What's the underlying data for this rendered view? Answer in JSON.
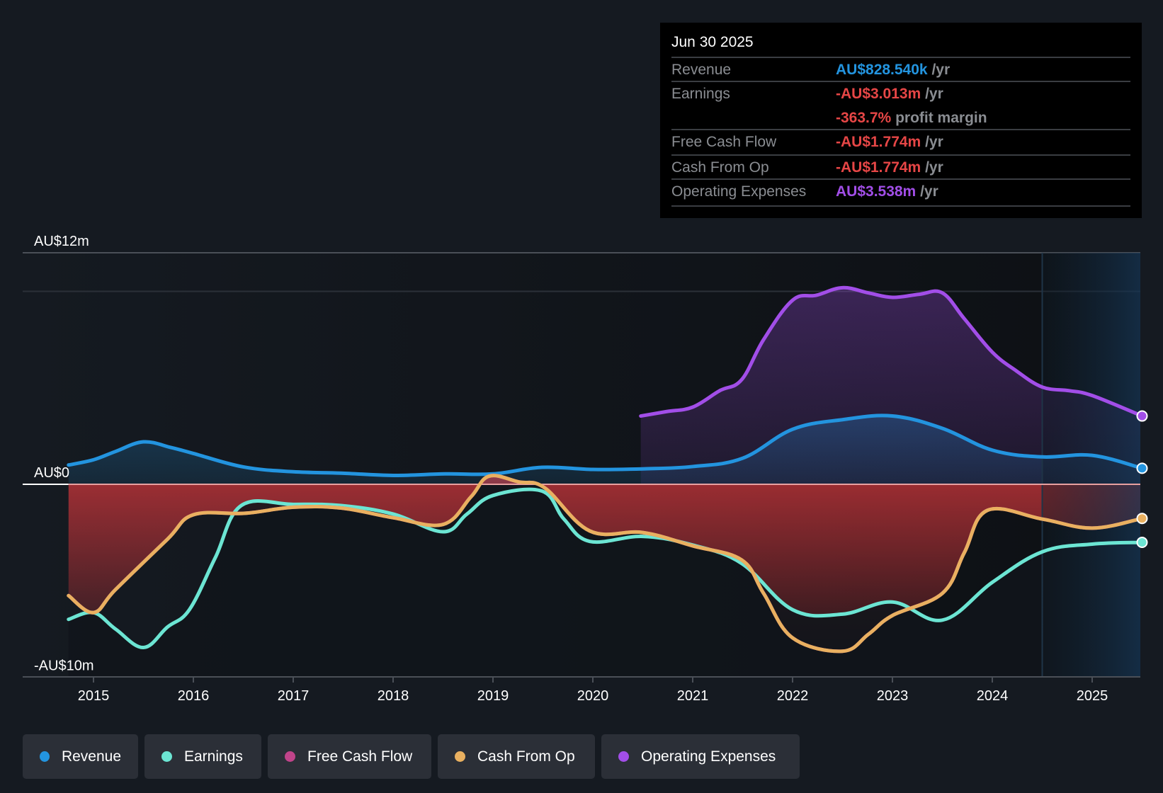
{
  "tooltip": {
    "date": "Jun 30 2025",
    "rows": [
      {
        "label": "Revenue",
        "value": "AU$828.540k",
        "unit": "/yr",
        "color": "#2394df"
      },
      {
        "label": "Earnings",
        "value": "-AU$3.013m",
        "unit": "/yr",
        "color": "#e64646"
      },
      {
        "label": "",
        "value": "-363.7%",
        "unit": "profit margin",
        "color": "#e64646"
      },
      {
        "label": "Free Cash Flow",
        "value": "-AU$1.774m",
        "unit": "/yr",
        "color": "#e64646"
      },
      {
        "label": "Cash From Op",
        "value": "-AU$1.774m",
        "unit": "/yr",
        "color": "#e64646"
      },
      {
        "label": "Operating Expenses",
        "value": "AU$3.538m",
        "unit": "/yr",
        "color": "#a24ee8"
      }
    ]
  },
  "legend": [
    {
      "label": "Revenue",
      "color": "#2394df"
    },
    {
      "label": "Earnings",
      "color": "#6ce5d3"
    },
    {
      "label": "Free Cash Flow",
      "color": "#c0448a"
    },
    {
      "label": "Cash From Op",
      "color": "#e9b060"
    },
    {
      "label": "Operating Expenses",
      "color": "#a24ee8"
    }
  ],
  "chart_data": {
    "type": "area",
    "title": "",
    "xlabel": "",
    "ylabel": "",
    "y_unit": "AU$ millions",
    "ylim": [
      -10,
      12
    ],
    "xlim": [
      2014.75,
      2025.5
    ],
    "y_tick_labels": [
      {
        "value": 12,
        "label": "AU$12m"
      },
      {
        "value": 0,
        "label": "AU$0"
      },
      {
        "value": -10,
        "label": "-AU$10m"
      }
    ],
    "gridlines": [
      12,
      10
    ],
    "x_ticks": [
      2015,
      2016,
      2017,
      2018,
      2019,
      2020,
      2021,
      2022,
      2023,
      2024,
      2025
    ],
    "x_tick_labels": [
      "2015",
      "2016",
      "2017",
      "2018",
      "2019",
      "2020",
      "2021",
      "2022",
      "2023",
      "2024",
      "2025"
    ],
    "forecast_shade_start": 2024.5,
    "series": [
      {
        "name": "Revenue",
        "color": "#2394df",
        "x": [
          2014.75,
          2015,
          2015.22,
          2015.5,
          2015.78,
          2016,
          2016.5,
          2017,
          2017.48,
          2018,
          2018.52,
          2019,
          2019.49,
          2020,
          2020.5,
          2021,
          2021.5,
          2022,
          2022.5,
          2023,
          2023.5,
          2024,
          2024.5,
          2025,
          2025.5
        ],
        "y": [
          1.0,
          1.27,
          1.7,
          2.2,
          1.9,
          1.6,
          0.9,
          0.65,
          0.58,
          0.46,
          0.54,
          0.54,
          0.88,
          0.77,
          0.8,
          0.92,
          1.35,
          2.85,
          3.35,
          3.54,
          2.9,
          1.77,
          1.42,
          1.5,
          0.83
        ]
      },
      {
        "name": "Earnings",
        "color": "#6ce5d3",
        "x": [
          2014.75,
          2015,
          2015.22,
          2015.5,
          2015.74,
          2015.96,
          2016.22,
          2016.48,
          2017,
          2017.48,
          2018,
          2018.5,
          2018.74,
          2019,
          2019.49,
          2019.71,
          2019.97,
          2020.5,
          2021,
          2021.49,
          2022,
          2022.5,
          2023,
          2023.5,
          2024,
          2024.5,
          2025,
          2025.5
        ],
        "y": [
          -7.0,
          -6.65,
          -7.5,
          -8.46,
          -7.4,
          -6.5,
          -3.8,
          -1.1,
          -1.04,
          -1.1,
          -1.54,
          -2.46,
          -1.54,
          -0.58,
          -0.35,
          -1.8,
          -2.96,
          -2.7,
          -3.15,
          -4.1,
          -6.5,
          -6.73,
          -6.1,
          -7.04,
          -5.08,
          -3.5,
          -3.1,
          -3.01
        ]
      },
      {
        "name": "Free Cash Flow",
        "color": "#c0448a",
        "x": [
          2014.75,
          2015,
          2015.22,
          2015.74,
          2016,
          2016.52,
          2017,
          2017.48,
          2018,
          2018.5,
          2018.78,
          2018.96,
          2019.26,
          2019.52,
          2019.97,
          2020.5,
          2021,
          2021.49,
          2021.71,
          2022,
          2022.5,
          2022.76,
          2023,
          2023.5,
          2023.72,
          2023.95,
          2024.5,
          2025,
          2025.5
        ],
        "y": [
          -5.77,
          -6.65,
          -5.46,
          -2.85,
          -1.58,
          -1.5,
          -1.19,
          -1.23,
          -1.73,
          -2.08,
          -0.65,
          0.42,
          0.12,
          -0.19,
          -2.42,
          -2.5,
          -3.19,
          -3.92,
          -5.65,
          -7.96,
          -8.65,
          -7.77,
          -6.8,
          -5.65,
          -3.54,
          -1.35,
          -1.8,
          -2.27,
          -1.77
        ]
      },
      {
        "name": "Cash From Op",
        "color": "#e9b060",
        "x": [
          2014.75,
          2015,
          2015.22,
          2015.74,
          2016,
          2016.52,
          2017,
          2017.48,
          2018,
          2018.5,
          2018.78,
          2018.96,
          2019.26,
          2019.52,
          2019.97,
          2020.5,
          2021,
          2021.49,
          2021.71,
          2022,
          2022.5,
          2022.76,
          2023,
          2023.5,
          2023.72,
          2023.95,
          2024.5,
          2025,
          2025.5
        ],
        "y": [
          -5.77,
          -6.65,
          -5.46,
          -2.85,
          -1.58,
          -1.5,
          -1.19,
          -1.23,
          -1.73,
          -2.08,
          -0.65,
          0.42,
          0.12,
          -0.19,
          -2.42,
          -2.5,
          -3.19,
          -3.92,
          -5.65,
          -7.96,
          -8.65,
          -7.77,
          -6.8,
          -5.65,
          -3.54,
          -1.35,
          -1.8,
          -2.27,
          -1.77
        ]
      },
      {
        "name": "Operating Expenses",
        "color": "#a24ee8",
        "x": [
          2020.48,
          2020.74,
          2021,
          2021.27,
          2021.49,
          2021.71,
          2022,
          2022.24,
          2022.5,
          2022.76,
          2023,
          2023.27,
          2023.5,
          2023.72,
          2024,
          2024.24,
          2024.5,
          2024.77,
          2025,
          2025.5
        ],
        "y": [
          3.54,
          3.77,
          4.0,
          4.85,
          5.42,
          7.5,
          9.54,
          9.8,
          10.19,
          9.92,
          9.69,
          9.85,
          9.92,
          8.58,
          6.85,
          5.88,
          5.04,
          4.85,
          4.6,
          3.54
        ]
      }
    ]
  }
}
